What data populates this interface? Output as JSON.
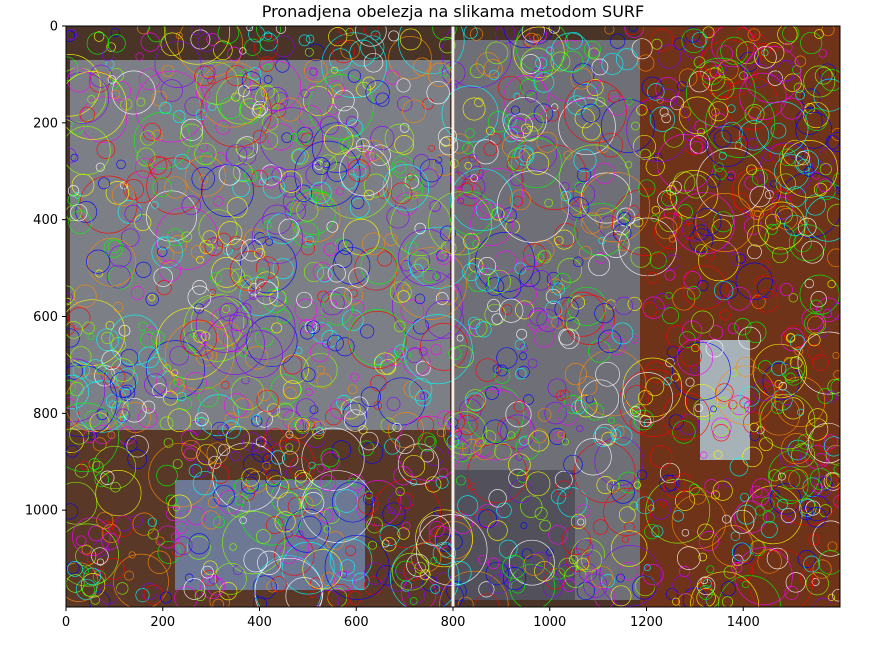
{
  "chart_data": {
    "type": "image",
    "title": "Pronadjena obelezja na slikama metodom SURF",
    "xlabel": "",
    "ylabel": "",
    "xlim": [
      0,
      1600
    ],
    "ylim": [
      1200,
      0
    ],
    "xticks": [
      0,
      200,
      400,
      600,
      800,
      1000,
      1200,
      1400
    ],
    "yticks": [
      0,
      200,
      400,
      600,
      800,
      1000
    ],
    "xtick_labels": [
      "0",
      "200",
      "400",
      "600",
      "800",
      "1000",
      "1200",
      "1400"
    ],
    "ytick_labels": [
      "0",
      "200",
      "400",
      "600",
      "800",
      "1000"
    ],
    "grid": false,
    "panels": [
      {
        "x_range": [
          0,
          800
        ],
        "y_range": [
          0,
          1200
        ]
      },
      {
        "x_range": [
          800,
          1600
        ],
        "y_range": [
          0,
          1200
        ]
      }
    ],
    "panel_divider_x": 800
  },
  "colors": {
    "background_dark": "#3a2a20",
    "wood": "#7a3a1a",
    "gray": "#8a8d95",
    "keypoint_palette": [
      "#ff0000",
      "#00ff00",
      "#0000ff",
      "#ff00ff",
      "#00ffff",
      "#ffff00",
      "#ff8800",
      "#88ff00",
      "#ffffff",
      "#8800ff"
    ]
  }
}
